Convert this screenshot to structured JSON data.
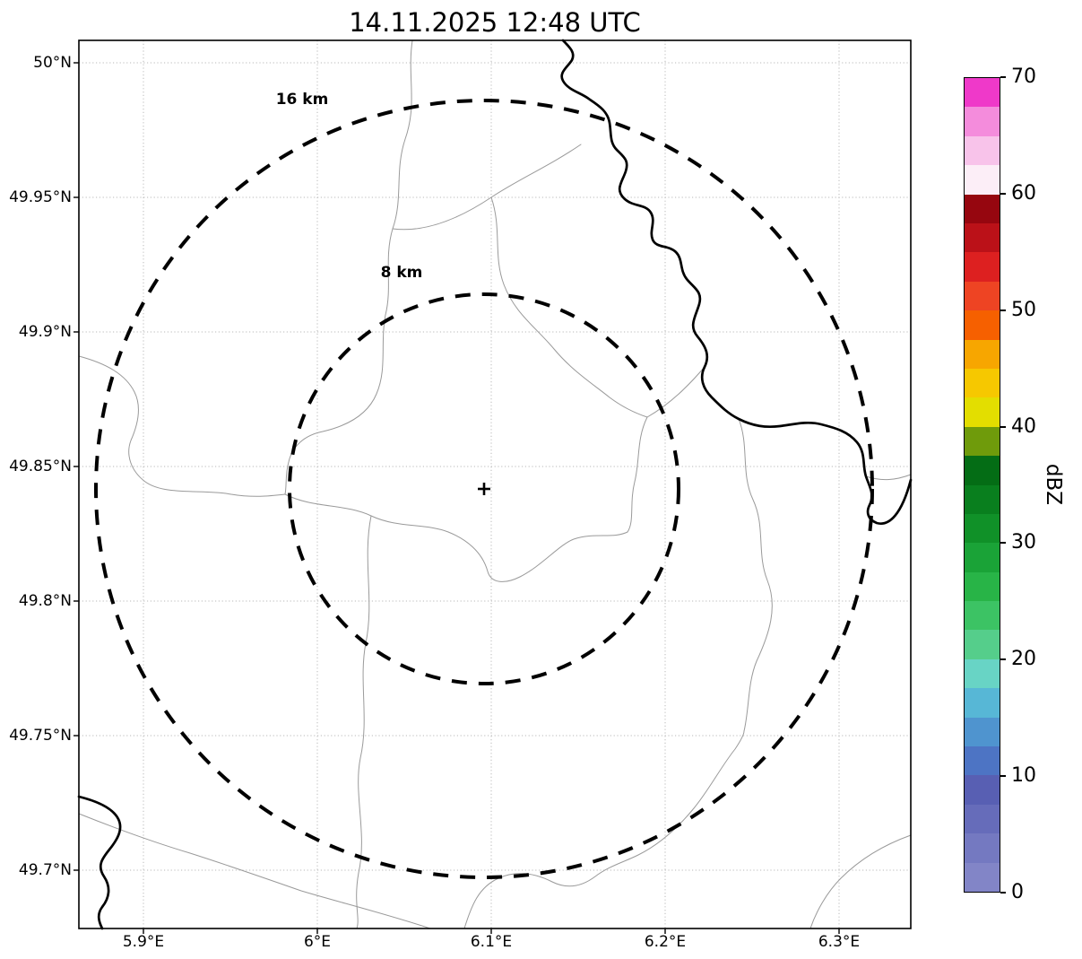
{
  "title": "14.11.2025 12:48 UTC",
  "map": {
    "x_axis": {
      "ticks": [
        "5.9°E",
        "6°E",
        "6.1°E",
        "6.2°E",
        "6.3°E"
      ]
    },
    "y_axis": {
      "ticks": [
        "50°N",
        "49.95°N",
        "49.9°N",
        "49.85°N",
        "49.8°N",
        "49.75°N",
        "49.7°N"
      ]
    },
    "rings": [
      {
        "label": "16 km"
      },
      {
        "label": "8 km"
      }
    ],
    "marker": {
      "symbol": "+"
    }
  },
  "colorbar": {
    "label": "dBZ",
    "ticks": [
      "70",
      "60",
      "50",
      "40",
      "30",
      "20",
      "10",
      "0"
    ],
    "min": 0,
    "max": 70,
    "colors_bottom_to_top": [
      "#8285c7",
      "#7479c1",
      "#666cba",
      "#585fb3",
      "#4d74c4",
      "#4f94cf",
      "#57b7d6",
      "#68d4c5",
      "#55ce8b",
      "#3cc364",
      "#28b447",
      "#1aa337",
      "#109128",
      "#097f1e",
      "#046d15",
      "#6f9b0b",
      "#e3de00",
      "#f6c800",
      "#f7a600",
      "#f66000",
      "#ee4423",
      "#dd2020",
      "#bb1118",
      "#96060f",
      "#fceef7",
      "#f8c3ea",
      "#f48cdc",
      "#ef39c9"
    ]
  }
}
